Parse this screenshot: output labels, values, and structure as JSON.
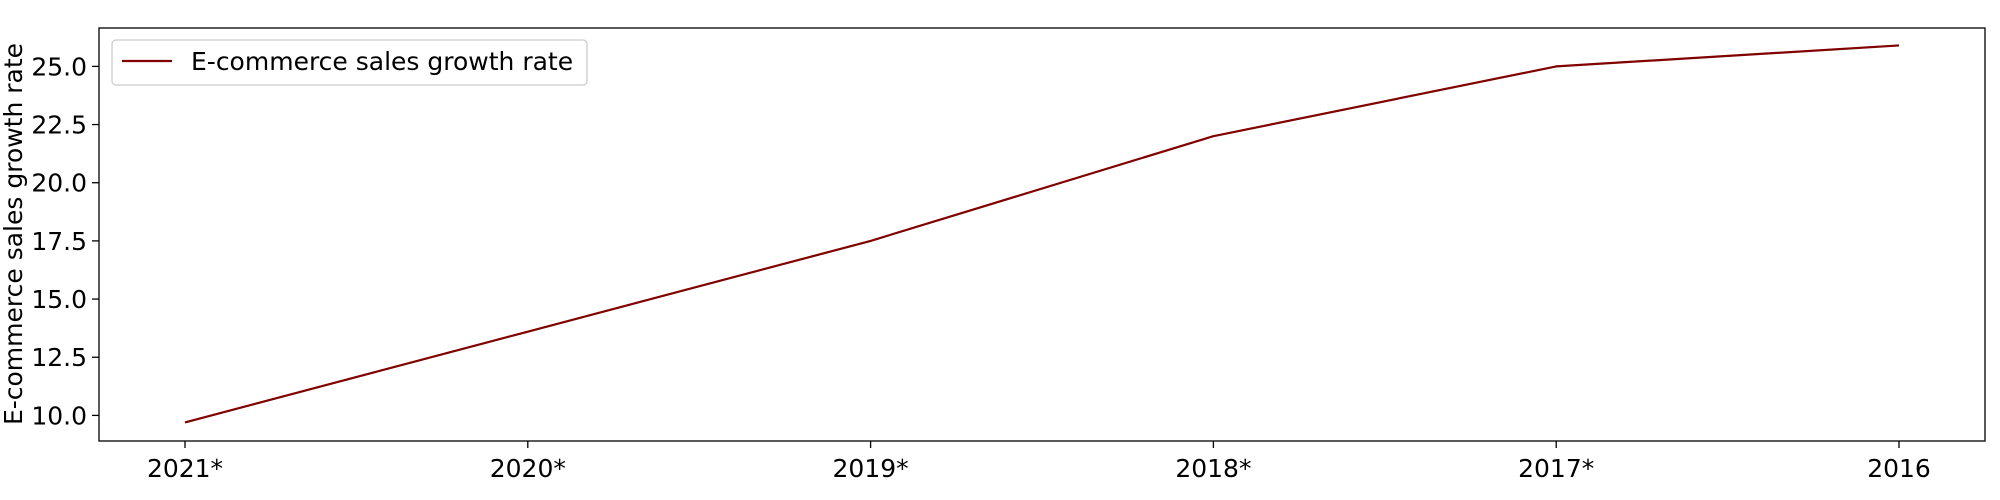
{
  "chart_data": {
    "type": "line",
    "categories": [
      "2021*",
      "2020*",
      "2019*",
      "2018*",
      "2017*",
      "2016"
    ],
    "series": [
      {
        "name": "E-commerce sales growth rate",
        "values": [
          9.7,
          13.6,
          17.5,
          22.0,
          25.0,
          25.9
        ],
        "color": "#800000"
      }
    ],
    "xlabel": "",
    "ylabel": "E-commerce sales growth rate",
    "ylim": [
      8.9,
      26.65
    ],
    "yticks": [
      10.0,
      12.5,
      15.0,
      17.5,
      20.0,
      22.5,
      25.0
    ],
    "ytick_labels": [
      "10.0",
      "12.5",
      "15.0",
      "17.5",
      "20.0",
      "22.5",
      "25.0"
    ],
    "grid": false,
    "legend": "upper left"
  }
}
